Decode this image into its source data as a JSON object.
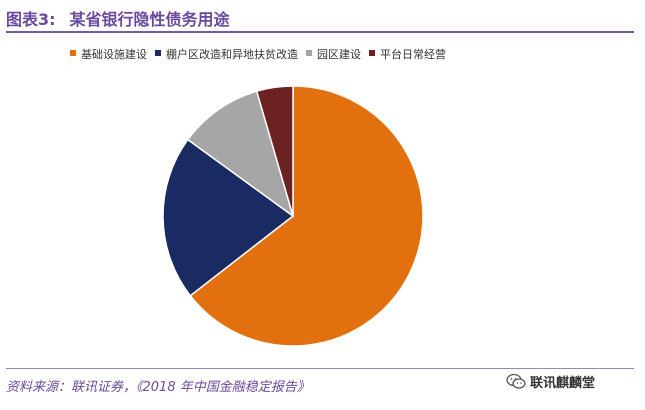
{
  "figure": {
    "number": "图表3:",
    "title": "某省银行隐性债务用途",
    "source": "资料来源：联讯证券，《2018 年中国金融稳定报告》",
    "watermark": "联讯麒麟堂",
    "watermark_icon": "wechat-icon"
  },
  "chart_data": {
    "type": "pie",
    "title": "",
    "legend_position": "top",
    "start_angle": "12 o'clock",
    "direction": "clockwise",
    "series": [
      {
        "name": "基础设施建设",
        "value": 64.5,
        "color": "#e3700f"
      },
      {
        "name": "棚户区改造和异地扶贫改造",
        "value": 20.5,
        "color": "#1a2a63"
      },
      {
        "name": "园区建设",
        "value": 10.5,
        "color": "#a6a6a6"
      },
      {
        "name": "平台日常经营",
        "value": 4.5,
        "color": "#6b2221"
      }
    ]
  }
}
